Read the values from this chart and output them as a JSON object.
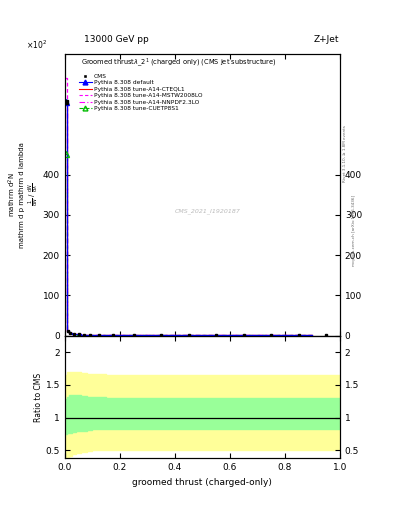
{
  "title_top": "13000 GeV pp",
  "title_right": "Z+Jet",
  "xlabel": "groomed thrust (charged-only)",
  "ylabel_ratio": "Ratio to CMS",
  "watermark": "CMS_2021_I1920187",
  "right_label_top": "Rivet 3.1.10, ≥ 1.8M events",
  "right_label_bot": "mcplots.cern.ch [arXiv:1306.3436]",
  "xlim": [
    0,
    1
  ],
  "ylim_main": [
    0,
    7
  ],
  "ylim_ratio": [
    0.38,
    2.25
  ],
  "yticks_main_vals": [
    0,
    1,
    2,
    3,
    4
  ],
  "yticks_main_labels": [
    "0",
    "100",
    "200",
    "300",
    "400"
  ],
  "yticks_ratio": [
    0.5,
    1.0,
    1.5,
    2.0
  ],
  "yticks_ratio_labels": [
    "0.5",
    "1",
    "1.5",
    "2"
  ],
  "x_bins": [
    0.0,
    0.008,
    0.016,
    0.025,
    0.04,
    0.06,
    0.08,
    0.1,
    0.15,
    0.2,
    0.3,
    0.4,
    0.5,
    0.6,
    0.7,
    0.8,
    0.9,
    1.0
  ],
  "y_cms": [
    5.8,
    0.12,
    0.06,
    0.04,
    0.03,
    0.025,
    0.02,
    0.018,
    0.015,
    0.013,
    0.012,
    0.011,
    0.011,
    0.011,
    0.011,
    0.011,
    0.011
  ],
  "y_default": [
    5.8,
    0.12,
    0.06,
    0.04,
    0.03,
    0.025,
    0.02,
    0.018,
    0.015,
    0.013,
    0.012,
    0.011,
    0.011,
    0.011,
    0.011,
    0.011,
    0.011
  ],
  "y_red": [
    5.8,
    0.12,
    0.06,
    0.04,
    0.03,
    0.025,
    0.02,
    0.018,
    0.015,
    0.013,
    0.012,
    0.011,
    0.011,
    0.011,
    0.011,
    0.011,
    0.011
  ],
  "y_magenta1": [
    6.4,
    0.13,
    0.065,
    0.042,
    0.031,
    0.026,
    0.021,
    0.019,
    0.016,
    0.014,
    0.013,
    0.012,
    0.012,
    0.012,
    0.012,
    0.012,
    0.012
  ],
  "y_magenta2": [
    5.8,
    0.12,
    0.06,
    0.04,
    0.03,
    0.025,
    0.02,
    0.018,
    0.015,
    0.013,
    0.012,
    0.011,
    0.011,
    0.011,
    0.011,
    0.011,
    0.011
  ],
  "y_green": [
    4.5,
    0.11,
    0.055,
    0.037,
    0.028,
    0.023,
    0.019,
    0.017,
    0.014,
    0.012,
    0.011,
    0.01,
    0.01,
    0.01,
    0.01,
    0.01,
    0.01
  ],
  "ratio_x": [
    0.0,
    0.008,
    0.016,
    0.025,
    0.04,
    0.06,
    0.08,
    0.1,
    0.15,
    0.2,
    0.3,
    0.4,
    0.5,
    0.6,
    0.7,
    0.8,
    0.9,
    1.0
  ],
  "ratio_yellow_upper": [
    1.65,
    1.7,
    1.7,
    1.7,
    1.7,
    1.68,
    1.67,
    1.66,
    1.65,
    1.65,
    1.65,
    1.65,
    1.65,
    1.65,
    1.65,
    1.65,
    1.65,
    1.65
  ],
  "ratio_yellow_lower": [
    0.38,
    0.4,
    0.42,
    0.44,
    0.46,
    0.48,
    0.49,
    0.5,
    0.5,
    0.5,
    0.5,
    0.5,
    0.5,
    0.5,
    0.5,
    0.5,
    0.5,
    0.5
  ],
  "ratio_green_upper": [
    1.28,
    1.32,
    1.34,
    1.35,
    1.35,
    1.33,
    1.32,
    1.31,
    1.3,
    1.3,
    1.3,
    1.3,
    1.3,
    1.3,
    1.3,
    1.3,
    1.3,
    1.3
  ],
  "ratio_green_lower": [
    0.75,
    0.76,
    0.77,
    0.78,
    0.79,
    0.8,
    0.81,
    0.82,
    0.82,
    0.82,
    0.82,
    0.82,
    0.82,
    0.82,
    0.82,
    0.82,
    0.82,
    0.82
  ],
  "color_cms": "#000000",
  "color_blue": "#0000ff",
  "color_red": "#ff0000",
  "color_magenta1": "#ff00ff",
  "color_magenta2": "#ff00ff",
  "color_green": "#00bb00",
  "color_yellow_band": "#ffff99",
  "color_green_band": "#99ff99",
  "bg_color": "#ffffff",
  "legend_cms": "CMS",
  "legend_default": "Pythia 8.308 default",
  "legend_red": "Pythia 8.308 tune-A14-CTEQL1",
  "legend_m1": "Pythia 8.308 tune-A14-MSTW2008LO",
  "legend_m2": "Pythia 8.308 tune-A14-NNPDF2.3LO",
  "legend_green": "Pythia 8.308 tune-CUETP8S1"
}
